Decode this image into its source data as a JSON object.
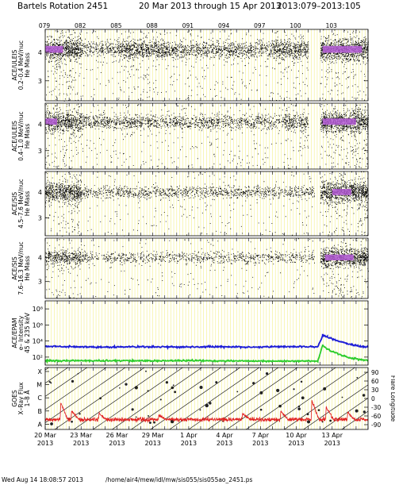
{
  "header": {
    "title_left": "Bartels Rotation 2451",
    "title_mid": "20 Mar 2013 through 15 Apr 2013",
    "title_right": "2013:079–2013:105"
  },
  "footer": {
    "timestamp": "Wed Aug 14 18:08:57 2013",
    "path": "/home/air4/mew/idl/mw/sis055/sis055ao_2451.ps"
  },
  "chart_data": {
    "type": "scatter",
    "doy_ticks": [
      "079",
      "082",
      "085",
      "088",
      "091",
      "094",
      "097",
      "100",
      "103"
    ],
    "date_ticks": [
      {
        "day": "20 Mar",
        "year": "2013"
      },
      {
        "day": "23 Mar",
        "year": "2013"
      },
      {
        "day": "26 Mar",
        "year": "2013"
      },
      {
        "day": "29 Mar",
        "year": "2013"
      },
      {
        "day": "1 Apr",
        "year": "2013"
      },
      {
        "day": "4 Apr",
        "year": "2013"
      },
      {
        "day": "7 Apr",
        "year": "2013"
      },
      {
        "day": "10 Apr",
        "year": "2013"
      },
      {
        "day": "13 Apr",
        "year": "2013"
      }
    ],
    "xlim": [
      79,
      106
    ],
    "panels": [
      {
        "label_lines": [
          "ACE/ULEIS",
          "0.2–0.4 MeV/nuc",
          "He Mass"
        ],
        "ylim": [
          2.3,
          4.8
        ],
        "yticks": [
          "3",
          "4"
        ],
        "band_center": 4.1,
        "activity": [
          {
            "x0": 79.0,
            "x1": 82.0,
            "level": 1.0
          },
          {
            "x0": 82.0,
            "x1": 85.0,
            "level": 0.35
          },
          {
            "x0": 85.0,
            "x1": 89.0,
            "level": 0.7
          },
          {
            "x0": 89.0,
            "x1": 98.0,
            "level": 0.45
          },
          {
            "x0": 98.0,
            "x1": 101.0,
            "level": 0.7
          },
          {
            "x0": 102.0,
            "x1": 106.0,
            "level": 1.0
          }
        ],
        "purple_fill": [
          {
            "x0": 79.0,
            "x1": 80.5
          },
          {
            "x0": 102.2,
            "x1": 105.5
          }
        ]
      },
      {
        "label_lines": [
          "ACE/ULEIS",
          "0.4–1.0 MeV/nuc",
          "He Mass"
        ],
        "ylim": [
          2.3,
          4.8
        ],
        "yticks": [
          "3",
          "4"
        ],
        "band_center": 4.1,
        "activity": [
          {
            "x0": 79.0,
            "x1": 82.0,
            "level": 0.85
          },
          {
            "x0": 82.0,
            "x1": 99.0,
            "level": 0.35
          },
          {
            "x0": 99.0,
            "x1": 101.0,
            "level": 0.55
          },
          {
            "x0": 102.0,
            "x1": 106.0,
            "level": 1.0
          }
        ],
        "purple_fill": [
          {
            "x0": 79.0,
            "x1": 80.0
          },
          {
            "x0": 102.2,
            "x1": 105.0
          }
        ]
      },
      {
        "label_lines": [
          "ACE/SIS",
          "4.5–7.6 MeV/nuc",
          "He Mass"
        ],
        "ylim": [
          2.3,
          4.8
        ],
        "yticks": [
          "3",
          "4"
        ],
        "band_center": 4.0,
        "activity": [
          {
            "x0": 79.0,
            "x1": 82.0,
            "level": 0.9
          },
          {
            "x0": 82.0,
            "x1": 101.5,
            "level": 0.25
          },
          {
            "x0": 102.0,
            "x1": 106.0,
            "level": 1.0
          }
        ],
        "purple_fill": [
          {
            "x0": 103.0,
            "x1": 104.6
          }
        ]
      },
      {
        "label_lines": [
          "ACE/SIS",
          "7.6–16.3 MeV/nuc",
          "He Mass"
        ],
        "ylim": [
          2.3,
          4.8
        ],
        "yticks": [
          "3",
          "4"
        ],
        "band_center": 4.0,
        "activity": [
          {
            "x0": 79.0,
            "x1": 82.0,
            "level": 0.55
          },
          {
            "x0": 82.0,
            "x1": 101.5,
            "level": 0.2
          },
          {
            "x0": 102.0,
            "x1": 106.0,
            "level": 0.9
          }
        ],
        "purple_fill": [
          {
            "x0": 102.4,
            "x1": 104.8
          }
        ]
      }
    ],
    "epam": {
      "label_lines": [
        "ACE/EPAM",
        "e– Intensity",
        "45 & 235 keV"
      ],
      "ylim_log": [
        1,
        9
      ],
      "yticks": [
        {
          "v": 2,
          "label": "10²"
        },
        {
          "v": 4,
          "label": "10⁴"
        },
        {
          "v": 6,
          "label": "10⁶"
        },
        {
          "v": 8,
          "label": "10⁸"
        }
      ],
      "series": [
        {
          "color": "#1c1cd6",
          "points": [
            [
              79,
              3.35
            ],
            [
              81,
              3.3
            ],
            [
              84,
              3.25
            ],
            [
              87,
              3.3
            ],
            [
              90,
              3.25
            ],
            [
              93,
              3.3
            ],
            [
              96,
              3.25
            ],
            [
              99,
              3.3
            ],
            [
              101.8,
              3.3
            ],
            [
              102.2,
              4.7
            ],
            [
              102.6,
              4.5
            ],
            [
              103.5,
              4.0
            ],
            [
              104.5,
              3.6
            ],
            [
              105.5,
              3.3
            ],
            [
              106,
              3.25
            ]
          ]
        },
        {
          "color": "#2ccc2c",
          "points": [
            [
              79,
              1.55
            ],
            [
              85,
              1.55
            ],
            [
              92,
              1.55
            ],
            [
              98,
              1.5
            ],
            [
              101.8,
              1.5
            ],
            [
              102.2,
              3.5
            ],
            [
              102.6,
              3.0
            ],
            [
              103.5,
              2.4
            ],
            [
              104.5,
              1.9
            ],
            [
              105.5,
              1.65
            ],
            [
              106,
              1.6
            ]
          ]
        }
      ]
    },
    "goes": {
      "label_lines": [
        "GOES",
        "X–Ray Flux",
        "1–8 Å"
      ],
      "left_ticks": [
        "A",
        "B",
        "C",
        "M",
        "X"
      ],
      "right_label": "Flare Longitude",
      "right_ticks": [
        "-90",
        "-60",
        "-30",
        "0",
        "30",
        "60",
        "90"
      ],
      "flux_color": "#e02020",
      "flux_baseline": 1.35,
      "flux_peaks": [
        {
          "x": 80.3,
          "v": 2.6
        },
        {
          "x": 81.2,
          "v": 2.0
        },
        {
          "x": 83.5,
          "v": 1.8
        },
        {
          "x": 88.5,
          "v": 1.7
        },
        {
          "x": 95.5,
          "v": 1.8
        },
        {
          "x": 98.7,
          "v": 2.0
        },
        {
          "x": 101.3,
          "v": 2.8
        },
        {
          "x": 102.5,
          "v": 2.3
        },
        {
          "x": 104.3,
          "v": 1.9
        }
      ]
    }
  }
}
